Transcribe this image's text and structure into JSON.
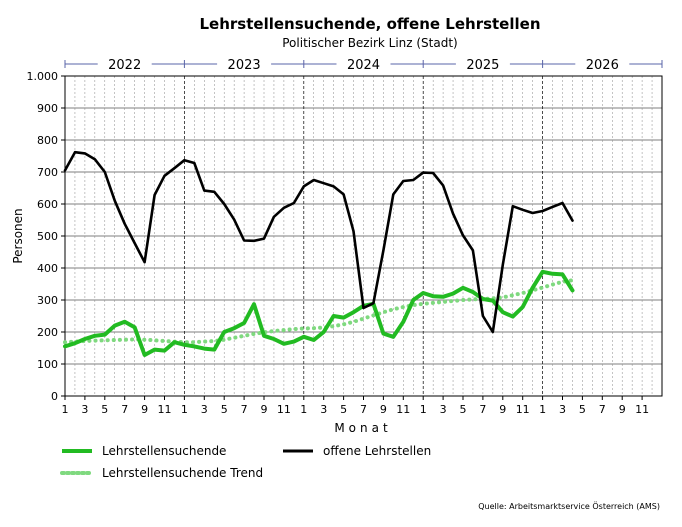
{
  "chart_data": {
    "type": "line",
    "title": "Lehrstellensuchende, offene Lehrstellen",
    "subtitle": "Politischer Bezirk Linz (Stadt)",
    "xlabel": "Monat",
    "ylabel": "Personen",
    "ylim": [
      0,
      1000
    ],
    "y_ticks": [
      0,
      100,
      200,
      300,
      400,
      500,
      600,
      700,
      800,
      900,
      1000
    ],
    "y_tick_labels": [
      "0",
      "100",
      "200",
      "300",
      "400",
      "500",
      "600",
      "700",
      "800",
      "900",
      "1.000"
    ],
    "x_start": "2022-01",
    "x_months": 60,
    "x_tick_labels": [
      "1",
      "3",
      "5",
      "7",
      "9",
      "11",
      "1",
      "3",
      "5",
      "7",
      "9",
      "11",
      "1",
      "3",
      "5",
      "7",
      "9",
      "11",
      "1",
      "3",
      "5",
      "7",
      "9",
      "11",
      "1",
      "3",
      "5",
      "7",
      "9",
      "11"
    ],
    "years": [
      "2022",
      "2023",
      "2024",
      "2025",
      "2026"
    ],
    "grid": true,
    "legend_position": "bottom",
    "series": [
      {
        "name": "Lehrstellensuchende",
        "color": "#22bb22",
        "style": "solid",
        "values": [
          155,
          165,
          178,
          188,
          192,
          220,
          232,
          215,
          128,
          145,
          142,
          168,
          160,
          155,
          148,
          145,
          200,
          212,
          228,
          287,
          188,
          178,
          163,
          170,
          185,
          175,
          200,
          250,
          245,
          262,
          282,
          288,
          195,
          185,
          232,
          300,
          322,
          312,
          310,
          320,
          338,
          325,
          303,
          298,
          262,
          248,
          278,
          338,
          388,
          382,
          380,
          330
        ]
      },
      {
        "name": "offene Lehrstellen",
        "color": "#000000",
        "style": "solid",
        "values": [
          705,
          762,
          758,
          740,
          700,
          610,
          538,
          478,
          418,
          628,
          688,
          712,
          737,
          728,
          642,
          638,
          600,
          552,
          486,
          485,
          492,
          560,
          588,
          603,
          655,
          675,
          665,
          655,
          630,
          515,
          275,
          290,
          455,
          630,
          672,
          675,
          698,
          697,
          658,
          570,
          502,
          455,
          250,
          200,
          410,
          593,
          582,
          572,
          578,
          591,
          603,
          548
        ]
      },
      {
        "name": "Lehrstellensuchende Trend",
        "color": "#7fd97f",
        "style": "dotted",
        "values": [
          168,
          170,
          172,
          173,
          174,
          175,
          176,
          177,
          176,
          174,
          172,
          170,
          168,
          168,
          170,
          172,
          176,
          182,
          188,
          194,
          199,
          203,
          206,
          209,
          211,
          212,
          214,
          218,
          224,
          232,
          242,
          252,
          262,
          271,
          278,
          284,
          288,
          291,
          294,
          297,
          300,
          302,
          303,
          305,
          308,
          315,
          322,
          330,
          339,
          348,
          357,
          362
        ]
      }
    ],
    "source": "Quelle: Arbeitsmarktservice Österreich (AMS)"
  }
}
